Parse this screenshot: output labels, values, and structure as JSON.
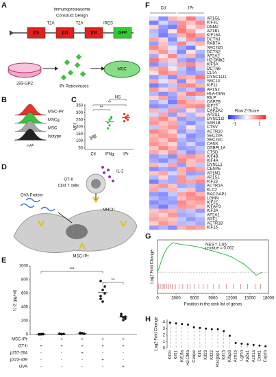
{
  "panel_labels": [
    "A",
    "B",
    "C",
    "D",
    "E",
    "F",
    "G",
    "H"
  ],
  "A": {
    "title": [
      "Immunoproteasome",
      "Construct Design"
    ],
    "linkers": [
      "T2A",
      "T2A",
      "IRES"
    ],
    "genes": [
      "β1i",
      "β2i",
      "β5i",
      "GFP"
    ],
    "gene_colors": [
      "#e0201b",
      "#e0201b",
      "#e0201b",
      "#2ecc2e"
    ],
    "cell1": "293-GP2",
    "virus": "IPr Retroviruses",
    "cell2": "MSC"
  },
  "B": {
    "legend": [
      "MSC-IPr",
      "MSCg",
      "MSC",
      "Isotype"
    ],
    "colors": [
      "#e8312a",
      "#3cc23c",
      "#a6a6a6",
      "#222222"
    ],
    "xlabel": "I-Aᵇ"
  },
  "C": {
    "ylabel": "MFI",
    "categories": [
      "Ctl",
      "IFNg",
      "IPr"
    ],
    "colors": [
      "#9a9a9a",
      "#3cc23c",
      "#e8312a"
    ],
    "ylim": [
      40,
      360
    ],
    "yticks": [
      50,
      100,
      150,
      200,
      250,
      300,
      350
    ],
    "values": [
      [
        120,
        130,
        140,
        115,
        135,
        125
      ],
      [
        190,
        250,
        270,
        230,
        210,
        260
      ],
      [
        240,
        260,
        280,
        290,
        270,
        250
      ]
    ],
    "significance": [
      "**",
      "**",
      "NS"
    ]
  },
  "D": {
    "tcell": [
      "OT-II",
      "CD4 T cells"
    ],
    "cytokine": "IL-2",
    "protein": "OVA Protein",
    "mhc": "MHCII",
    "msc": "MSC-IPr"
  },
  "E": {
    "ylabel": "IL-2 (pg/ml)",
    "ylim": [
      0,
      1000
    ],
    "yticks": [
      0,
      200,
      400,
      600,
      800,
      1000
    ],
    "values": [
      [
        5,
        3,
        8,
        2,
        6,
        4
      ],
      [
        10,
        5,
        8,
        12,
        6
      ],
      [
        15,
        20,
        10,
        25,
        18
      ],
      [
        780,
        650,
        600,
        520,
        480,
        700,
        560
      ],
      [
        300,
        250,
        230,
        270,
        210,
        260
      ]
    ],
    "significance": [
      "***",
      "**"
    ],
    "rows": [
      {
        "name": "MSC-IPr",
        "signs": [
          "-",
          "+",
          "+",
          "+",
          "+"
        ]
      },
      {
        "name": "OT-II",
        "signs": [
          "+",
          "+",
          "+",
          "+",
          "+"
        ]
      },
      {
        "name": "p257-264",
        "signs": [
          "-",
          "-",
          "+",
          "-",
          "-"
        ]
      },
      {
        "name": "p323-339",
        "signs": [
          "-",
          "-",
          "-",
          "+",
          "-"
        ]
      },
      {
        "name": "OVA",
        "signs": [
          "-",
          "-",
          "-",
          "-",
          "+"
        ]
      }
    ]
  },
  "F": {
    "groups": [
      "Ctl",
      "IPr"
    ],
    "key_title": "Row Z-Score",
    "key_lim": [
      -1.5,
      1.5
    ],
    "key_ticks": [
      -1,
      1
    ],
    "rows": [
      {
        "gene": "AP1G1",
        "z": [
          -0.2,
          -0.8,
          0.5,
          0.3,
          0.9,
          -0.4
        ]
      },
      {
        "gene": "KIF3C",
        "z": [
          -0.9,
          -0.3,
          -0.6,
          0.7,
          0.4,
          0.8
        ]
      },
      {
        "gene": "DNM2",
        "z": [
          0.3,
          -0.7,
          -0.9,
          0.8,
          0.2,
          0.5
        ]
      },
      {
        "gene": "AP1B1",
        "z": [
          -0.5,
          -0.8,
          0.2,
          0.9,
          0.6,
          -0.1
        ]
      },
      {
        "gene": "KIF18A",
        "z": [
          -0.4,
          -0.9,
          -0.6,
          0.5,
          0.9,
          0.6
        ]
      },
      {
        "gene": "DCTN1",
        "z": [
          0.6,
          0.3,
          -0.8,
          -0.2,
          0.7,
          -0.7
        ]
      },
      {
        "gene": "RAB7A",
        "z": [
          -0.7,
          0.4,
          -0.5,
          0.8,
          -0.3,
          0.5
        ]
      },
      {
        "gene": "SEC24D",
        "z": [
          0.8,
          0.5,
          -0.2,
          -0.6,
          -0.9,
          0.1
        ]
      },
      {
        "gene": "DCTN2",
        "z": [
          0.4,
          0.7,
          -0.3,
          -0.8,
          0.2,
          -0.5
        ]
      },
      {
        "gene": "AP2A2",
        "z": [
          -0.6,
          0.2,
          0.8,
          -0.4,
          0.5,
          -0.7
        ]
      },
      {
        "gene": "H2-DMb2",
        "z": [
          0.9,
          0.5,
          0.3,
          -0.6,
          -0.8,
          -0.5
        ]
      },
      {
        "gene": "KIF5A",
        "z": [
          -0.8,
          -0.5,
          -0.3,
          0.6,
          0.8,
          0.4
        ]
      },
      {
        "gene": "DCTN6",
        "z": [
          0.5,
          0.7,
          0.2,
          -0.4,
          -0.8,
          -0.3
        ]
      },
      {
        "gene": "CLTA",
        "z": [
          0.2,
          0.8,
          0.6,
          -0.5,
          -0.7,
          -0.6
        ]
      },
      {
        "gene": "DYNC1LI1",
        "z": [
          -0.7,
          -0.4,
          -0.8,
          0.6,
          0.5,
          0.9
        ]
      },
      {
        "gene": "SEC13",
        "z": [
          0.6,
          -0.2,
          0.4,
          -0.8,
          0.3,
          -0.5
        ]
      },
      {
        "gene": "KIF11",
        "z": [
          -0.9,
          -0.6,
          -0.4,
          0.7,
          0.8,
          0.5
        ]
      },
      {
        "gene": "AP1S2",
        "z": [
          0.7,
          0.3,
          0.5,
          -0.6,
          -0.4,
          -0.8
        ]
      },
      {
        "gene": "HLA-DMa",
        "z": [
          -0.5,
          -0.8,
          -0.6,
          0.4,
          0.9,
          0.7
        ]
      },
      {
        "gene": "RILP",
        "z": [
          0.3,
          0.6,
          -0.7,
          0.5,
          -0.4,
          -0.2
        ]
      },
      {
        "gene": "CAPZB",
        "z": [
          -0.6,
          -0.3,
          -0.9,
          0.8,
          0.5,
          0.4
        ]
      },
      {
        "gene": "KIF22",
        "z": [
          -0.8,
          -0.7,
          -0.5,
          0.6,
          0.7,
          0.8
        ]
      },
      {
        "gene": "CAPZA2",
        "z": [
          0.5,
          -0.4,
          0.7,
          -0.6,
          0.2,
          -0.5
        ]
      },
      {
        "gene": "AP2S1",
        "z": [
          -0.3,
          0.6,
          -0.7,
          0.4,
          -0.5,
          0.3
        ]
      },
      {
        "gene": "DYNC1I2",
        "z": [
          0.6,
          0.8,
          0.4,
          -0.7,
          -0.5,
          -0.6
        ]
      },
      {
        "gene": "SAR1B",
        "z": [
          0.7,
          0.4,
          0.6,
          -0.5,
          -0.8,
          -0.4
        ]
      },
      {
        "gene": "CTSV",
        "z": [
          -0.4,
          0.5,
          0.7,
          -0.6,
          0.2,
          -0.5
        ]
      },
      {
        "gene": "ACTR10",
        "z": [
          0.8,
          0.6,
          0.3,
          -0.7,
          -0.4,
          -0.6
        ]
      },
      {
        "gene": "SEC23A",
        "z": [
          0.5,
          0.7,
          0.6,
          -0.3,
          -0.8,
          -0.6
        ]
      },
      {
        "gene": "SEC24C",
        "z": [
          0.6,
          0.4,
          0.8,
          -0.5,
          -0.7,
          -0.5
        ]
      },
      {
        "gene": "CANX",
        "z": [
          0.7,
          0.5,
          0.3,
          -0.6,
          -0.3,
          -0.7
        ]
      },
      {
        "gene": "OSBPL1A",
        "z": [
          0.4,
          0.8,
          0.5,
          -0.7,
          -0.6,
          -0.4
        ]
      },
      {
        "gene": "CTSD",
        "z": [
          0.6,
          0.3,
          0.7,
          -0.4,
          -0.8,
          -0.5
        ]
      },
      {
        "gene": "KIF4B",
        "z": [
          -0.7,
          -0.5,
          -0.8,
          0.6,
          0.7,
          0.5
        ]
      },
      {
        "gene": "KIF4A",
        "z": [
          -0.6,
          -0.8,
          -0.5,
          0.8,
          0.4,
          0.6
        ]
      },
      {
        "gene": "DYNLL1",
        "z": [
          0.5,
          -0.3,
          0.6,
          -0.7,
          0.4,
          -0.4
        ]
      },
      {
        "gene": "CENPE",
        "z": [
          -0.8,
          -0.6,
          -0.7,
          0.5,
          0.8,
          0.6
        ]
      },
      {
        "gene": "AP1M1",
        "z": [
          0.4,
          0.6,
          -0.3,
          0.5,
          -0.7,
          -0.6
        ]
      },
      {
        "gene": "AP1S1",
        "z": [
          -0.5,
          0.3,
          -0.6,
          0.7,
          -0.4,
          0.5
        ]
      },
      {
        "gene": "KIF23",
        "z": [
          -0.9,
          -0.5,
          -0.6,
          0.7,
          0.6,
          0.8
        ]
      },
      {
        "gene": "ACTR1A",
        "z": [
          0.5,
          0.7,
          0.4,
          -0.6,
          -0.5,
          -0.7
        ]
      },
      {
        "gene": "KLC2",
        "z": [
          0.6,
          -0.4,
          0.5,
          -0.3,
          0.4,
          -0.7
        ]
      },
      {
        "gene": "RACGAP1",
        "z": [
          -0.7,
          -0.8,
          -0.4,
          0.6,
          0.8,
          0.5
        ]
      },
      {
        "gene": "LGMN",
        "z": [
          -0.5,
          -0.7,
          -0.6,
          0.4,
          0.7,
          0.8
        ],
        "color": "#d0182a"
      },
      {
        "gene": "KIF2C",
        "z": [
          -0.8,
          -0.6,
          -0.7,
          0.8,
          0.5,
          0.6
        ],
        "color": "#d0182a"
      },
      {
        "gene": "KIFAP3",
        "z": [
          -0.6,
          -0.9,
          -0.5,
          0.7,
          0.6,
          0.4
        ],
        "color": "#d0182a"
      },
      {
        "gene": "KIF3A",
        "z": [
          0.4,
          0.6,
          0.5,
          -0.5,
          -0.4,
          -0.7
        ]
      },
      {
        "gene": "AP2A1",
        "z": [
          0.5,
          0.3,
          0.7,
          -0.6,
          -0.5,
          -0.3
        ]
      },
      {
        "gene": "ARF1",
        "z": [
          0.6,
          0.5,
          0.4,
          -0.4,
          -0.7,
          -0.5
        ]
      },
      {
        "gene": "ACTR1B",
        "z": [
          0.3,
          0.7,
          0.5,
          -0.5,
          -0.4,
          -0.6
        ]
      },
      {
        "gene": "KIF15",
        "z": [
          -0.7,
          -0.5,
          -0.8,
          0.5,
          0.7,
          0.6
        ],
        "color": "#d0182a"
      }
    ]
  },
  "G": {
    "ylabel": "Log2 Fold Change",
    "xlabel": "Position in the rank list of genes",
    "annotation": [
      "NES = 1.65",
      "p-value = 0.002"
    ],
    "color": "#2db83d",
    "hit_color": "#b03030",
    "xlim": [
      0,
      18000
    ],
    "xticks": [
      0,
      3000,
      6000,
      9000,
      12000,
      15000,
      18000
    ],
    "ylim": [
      -0.15,
      0.55
    ],
    "x": [
      0,
      500,
      1000,
      1500,
      2000,
      2500,
      3000,
      4000,
      5000,
      6000,
      7000,
      8000,
      9000,
      10000,
      11000,
      12000,
      13000,
      14000,
      15000,
      16000,
      17000
    ],
    "y": [
      0,
      0.15,
      0.3,
      0.4,
      0.46,
      0.5,
      0.49,
      0.47,
      0.46,
      0.44,
      0.42,
      0.39,
      0.36,
      0.33,
      0.3,
      0.26,
      0.2,
      0.14,
      0.05,
      -0.05,
      0
    ],
    "hits": [
      200,
      450,
      700,
      900,
      1200,
      1500,
      1800,
      2100,
      2400,
      2900,
      3500,
      4100,
      4800,
      5300,
      6000,
      6700,
      7400,
      8200,
      9100,
      10000,
      11200,
      12300,
      13500,
      14600,
      15800,
      16700
    ]
  },
  "H": {
    "ylabel": "Log2 Fold Change",
    "ylim": [
      0,
      4.4
    ],
    "yticks": [
      0,
      1,
      2,
      3,
      4
    ],
    "categories": [
      "Kif2c",
      "Kif11",
      "Kif18a",
      "H2-DMa",
      "Cenpe",
      "Kif4",
      "Kif23",
      "Kif22",
      "Racgap1",
      "Kif15",
      "Kifap3",
      "Actr1b",
      "Lgmn",
      "Ap2a1",
      "Actr1a",
      "Dcnt1",
      "Capzb"
    ],
    "values": [
      3.9,
      3.8,
      3.7,
      3.6,
      3.2,
      3.1,
      3.0,
      2.9,
      2.9,
      2.6,
      1.9,
      0.8,
      0.7,
      0.6,
      0.5,
      0.4,
      0.3
    ]
  }
}
